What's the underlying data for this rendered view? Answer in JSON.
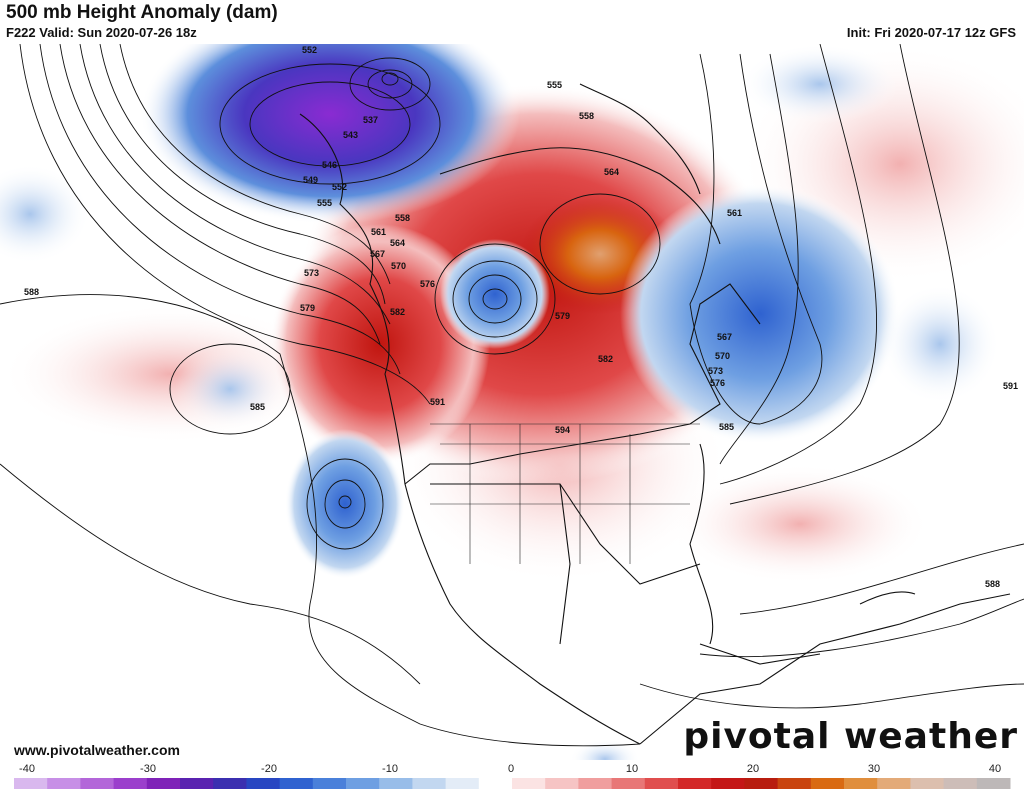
{
  "header": {
    "title": "500 mb Height Anomaly (dam)",
    "valid": "F222 Valid: Sun 2020-07-26 18z",
    "init": "Init: Fri 2020-07-17 12z GFS"
  },
  "footer": {
    "site": "www.pivotalweather.com",
    "brand": "pivotal weather"
  },
  "colorbar": {
    "ticks": [
      "-40",
      "-30",
      "-20",
      "-10",
      "0",
      "10",
      "20",
      "30",
      "40"
    ],
    "colors": [
      "#d9b8ee",
      "#c78fe6",
      "#b366d9",
      "#9b3fcc",
      "#7f22b8",
      "#5a22b0",
      "#3b2fb0",
      "#2846c2",
      "#2f62d0",
      "#4a80da",
      "#6e9fe2",
      "#98bde9",
      "#c2d7f0",
      "#e3ecf7",
      "#ffffff",
      "#fbe3e3",
      "#f6c4c4",
      "#f09e9e",
      "#e87777",
      "#e04e4e",
      "#d32828",
      "#c41616",
      "#b81c0f",
      "#c9440f",
      "#d96a12",
      "#e08e3c",
      "#e3aa78",
      "#dcbfae",
      "#cdbdb8",
      "#bdb8b8"
    ]
  },
  "contour_labels": [
    "552",
    "537",
    "543",
    "546",
    "549",
    "552",
    "555",
    "558",
    "561",
    "564",
    "567",
    "570",
    "573",
    "576",
    "579",
    "582",
    "585",
    "588",
    "591",
    "594",
    "555",
    "558",
    "561",
    "564",
    "567",
    "570",
    "573",
    "576",
    "579",
    "582",
    "585",
    "588",
    "591"
  ]
}
